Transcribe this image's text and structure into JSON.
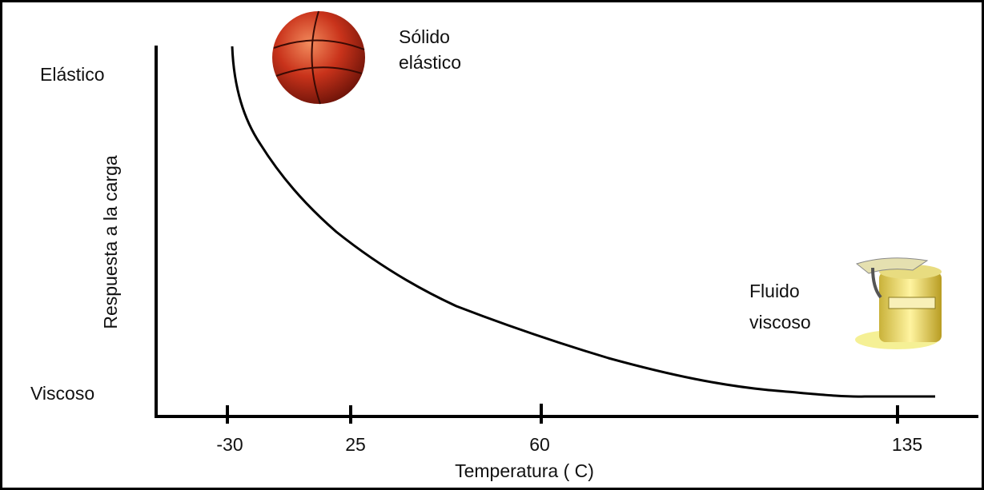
{
  "y_axis": {
    "title": "Respuesta a la carga",
    "top_label": "Elástico",
    "bottom_label": "Viscoso"
  },
  "x_axis": {
    "title": "Temperatura ( C)",
    "tick_labels": [
      "-30",
      "25",
      "60",
      "135"
    ]
  },
  "annotations": [
    {
      "lines": [
        "Sólido",
        "elástico"
      ]
    },
    {
      "lines": [
        "Fluido",
        "viscoso"
      ]
    }
  ]
}
